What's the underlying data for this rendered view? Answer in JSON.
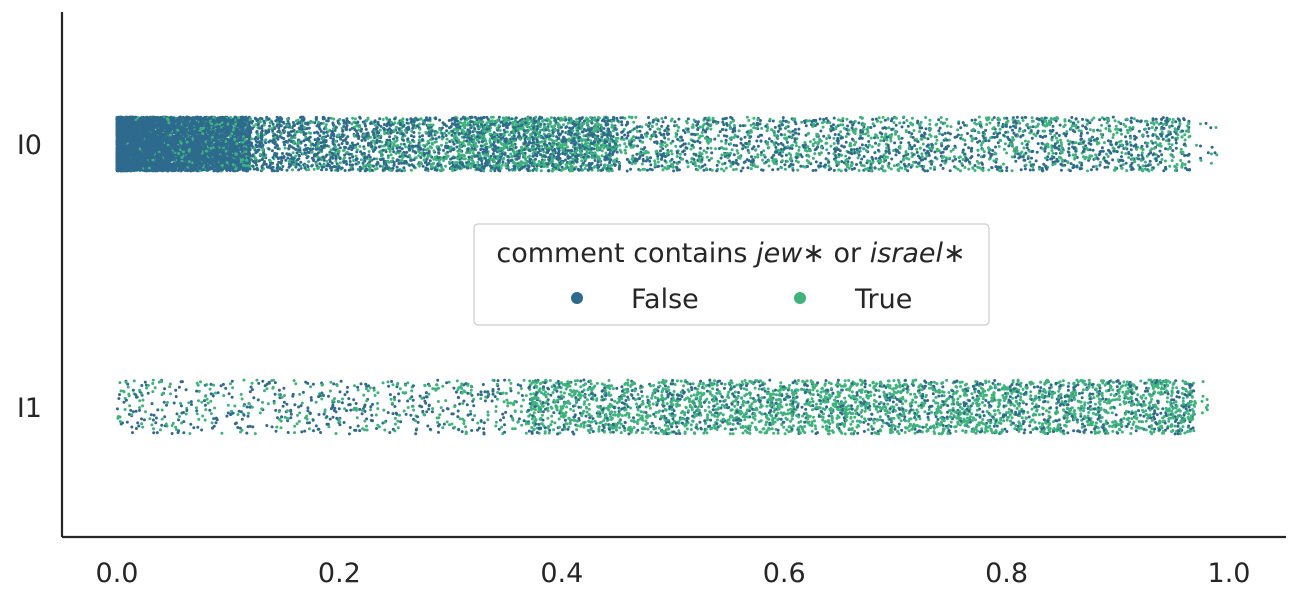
{
  "chart_data": {
    "type": "scatter",
    "subtype": "strip-plot",
    "categories": [
      "I0",
      "I1"
    ],
    "xlim": [
      -0.05,
      1.05
    ],
    "xticks": [
      "0.0",
      "0.2",
      "0.4",
      "0.6",
      "0.8",
      "1.0"
    ],
    "xlabel": "",
    "ylabel": "",
    "grid": false,
    "legend": {
      "placement": "center",
      "title_parts": [
        {
          "text": "comment contains ",
          "italic": false
        },
        {
          "text": "jew",
          "italic": true
        },
        {
          "text": "∗",
          "italic": false
        },
        {
          "text": "  or ",
          "italic": false
        },
        {
          "text": "israel",
          "italic": true
        },
        {
          "text": "∗",
          "italic": false
        }
      ],
      "entries": [
        {
          "label": "False",
          "color": "#2e6a8e"
        },
        {
          "label": "True",
          "color": "#3db47c"
        }
      ]
    },
    "series": [
      {
        "name": "False",
        "color": "#2e6a8e"
      },
      {
        "name": "True",
        "color": "#3db47c"
      }
    ],
    "distribution": {
      "I0": {
        "x_range": [
          0.0,
          0.99
        ],
        "density": "very dense near 0.0–0.1, decreasing toward 1.0",
        "true_share": "rises from near 0 at x=0 to about half above x=0.3"
      },
      "I1": {
        "x_range": [
          0.0,
          0.98
        ],
        "density": "sparse below 0.35, dense 0.4–0.95",
        "true_share": "majority True above x=0.4"
      }
    }
  }
}
